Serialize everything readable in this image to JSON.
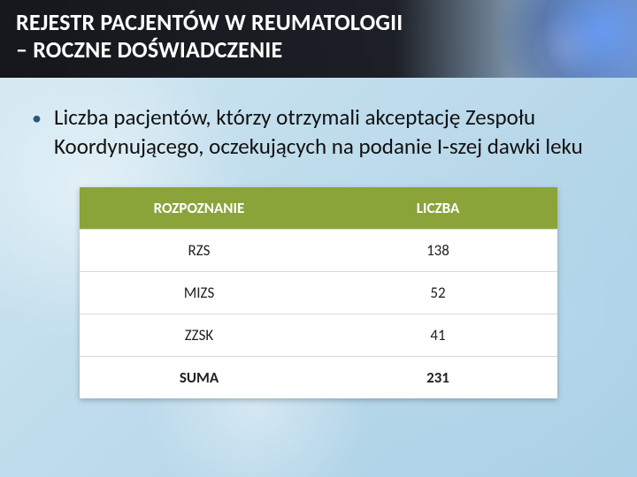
{
  "header": {
    "title_line1": "REJESTR PACJENTÓW W REUMATOLOGII",
    "title_line2": "– ROCZNE DOŚWIADCZENIE"
  },
  "bullet": {
    "text": "Liczba pacjentów, którzy otrzymali akceptację Zespołu Koordynującego, oczekujących na podanie I-szej dawki leku"
  },
  "table": {
    "type": "table",
    "header_bg": "#8aa43a",
    "header_text_color": "#ffffff",
    "row_border_color": "#d9d9d9",
    "cell_bg": "#ffffff",
    "cell_text_color": "#222222",
    "font_size": 17,
    "columns": [
      {
        "label": "ROZPOZNANIE",
        "align": "center"
      },
      {
        "label": "LICZBA",
        "align": "center"
      }
    ],
    "rows": [
      {
        "label": "RZS",
        "value": 138,
        "bold": false
      },
      {
        "label": "MIZS",
        "value": 52,
        "bold": false
      },
      {
        "label": "ZZSK",
        "value": 41,
        "bold": false
      },
      {
        "label": "SUMA",
        "value": 231,
        "bold": true
      }
    ]
  },
  "colors": {
    "slide_bg_light": "#d8ecf4",
    "slide_bg_dark": "#a8cfe5",
    "header_bg": "#05050a",
    "bullet_color": "#2a5a7a"
  }
}
